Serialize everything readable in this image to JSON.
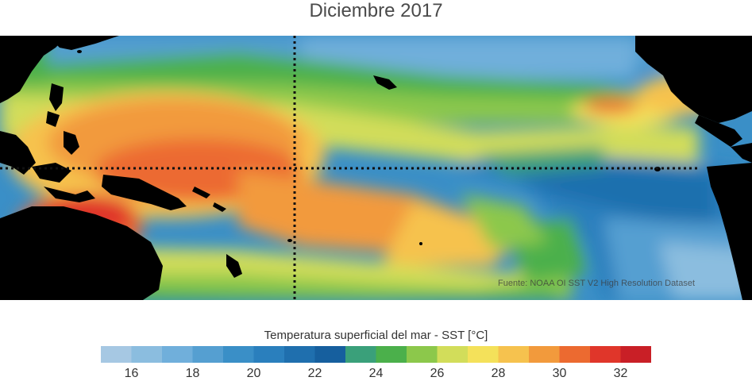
{
  "title": "Diciembre 2017",
  "source_note": "Fuente: NOAA OI SST V2 High Resolution Dataset",
  "colorbar": {
    "label": "Temperatura superficial del mar - SST  [°C]",
    "min": 15,
    "max": 33,
    "tick_labels": [
      "16",
      "18",
      "20",
      "22",
      "24",
      "26",
      "28",
      "30",
      "32"
    ],
    "tick_values": [
      16,
      18,
      20,
      22,
      24,
      26,
      28,
      30,
      32
    ],
    "colors": [
      "#a6c8e3",
      "#8bbddf",
      "#70afdb",
      "#559fd1",
      "#3a8fc7",
      "#2a7fbd",
      "#1f6fae",
      "#165f9e",
      "#3aa07a",
      "#4bb04b",
      "#8cc84b",
      "#d2dd5a",
      "#f4e15a",
      "#f6c24e",
      "#f29a3c",
      "#ec6a30",
      "#e0362a",
      "#c91f26"
    ]
  },
  "map": {
    "land_color": "#000000",
    "grid_color": "#111111",
    "overlays": [
      "equator-line",
      "date-line-meridian"
    ]
  }
}
